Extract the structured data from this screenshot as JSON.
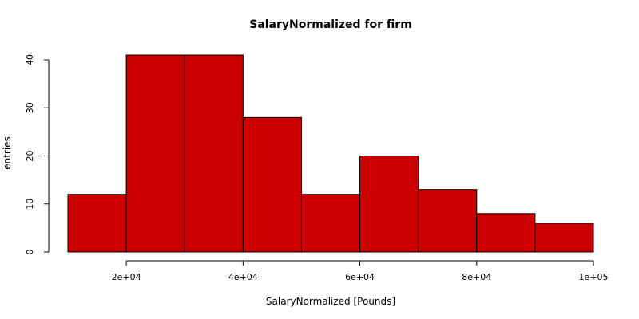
{
  "chart_data": {
    "type": "bar",
    "title": "SalaryNormalized for firm",
    "xlabel": "SalaryNormalized [Pounds]",
    "ylabel": "entries",
    "bar_color": "#cc0000",
    "bin_edges": [
      10000,
      20000,
      30000,
      40000,
      50000,
      60000,
      70000,
      80000,
      90000,
      100000
    ],
    "values": [
      12,
      41,
      41,
      28,
      12,
      20,
      13,
      8,
      6
    ],
    "xlim": [
      10000,
      100000
    ],
    "ylim": [
      0,
      41
    ],
    "x_ticks": [
      {
        "value": 20000,
        "label": "2e+04"
      },
      {
        "value": 40000,
        "label": "4e+04"
      },
      {
        "value": 60000,
        "label": "6e+04"
      },
      {
        "value": 80000,
        "label": "8e+04"
      },
      {
        "value": 100000,
        "label": "1e+05"
      }
    ],
    "y_ticks": [
      {
        "value": 0,
        "label": "0"
      },
      {
        "value": 10,
        "label": "10"
      },
      {
        "value": 20,
        "label": "20"
      },
      {
        "value": 30,
        "label": "30"
      },
      {
        "value": 40,
        "label": "40"
      }
    ],
    "grid": false,
    "legend": "none"
  }
}
